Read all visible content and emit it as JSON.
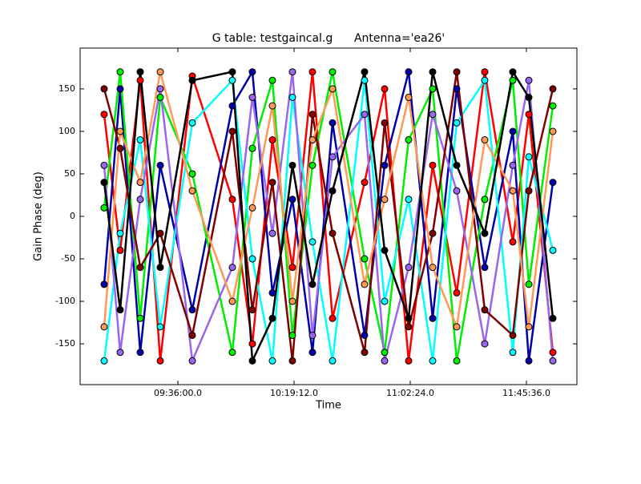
{
  "chart_data": {
    "type": "line",
    "title": "G table: testgaincal.g      Antenna='ea26'",
    "x_label": "Time",
    "y_label": "Gain Phase (deg)",
    "x": [
      32915,
      33273,
      33720,
      34167,
      34882,
      35775,
      36222,
      36669,
      37116,
      37563,
      38010,
      38725,
      39172,
      39708,
      40244,
      40781,
      41406,
      42032,
      42390,
      42926
    ],
    "xlim": [
      32379,
      43462
    ],
    "xticks": [
      {
        "value": 34560,
        "label": "09:36:00.0"
      },
      {
        "value": 37152,
        "label": "10:19:12.0"
      },
      {
        "value": 39744,
        "label": "11:02:24.0"
      },
      {
        "value": 42336,
        "label": "11:45:36.0"
      }
    ],
    "ylim": [
      -198,
      198
    ],
    "yticks": [
      -150,
      -100,
      -50,
      0,
      50,
      100,
      150
    ],
    "series": [
      {
        "color": "#ff0000",
        "values": [
          120,
          -40,
          160,
          -170,
          165,
          20,
          -150,
          90,
          -60,
          170,
          -120,
          40,
          150,
          -170,
          60,
          -90,
          170,
          -30,
          120,
          -160
        ]
      },
      {
        "color": "#0000aa",
        "values": [
          -80,
          150,
          -160,
          60,
          -110,
          130,
          170,
          -90,
          20,
          -160,
          110,
          -140,
          60,
          170,
          -120,
          150,
          -60,
          100,
          -170,
          40
        ]
      },
      {
        "color": "#00ee00",
        "values": [
          10,
          170,
          -120,
          140,
          50,
          -160,
          80,
          160,
          -140,
          60,
          170,
          -50,
          -160,
          90,
          150,
          -170,
          20,
          160,
          -80,
          130
        ]
      },
      {
        "color": "#00ffff",
        "values": [
          -170,
          -20,
          90,
          -130,
          110,
          160,
          -50,
          -170,
          140,
          -30,
          -170,
          160,
          -100,
          20,
          -170,
          110,
          160,
          -160,
          70,
          -40
        ]
      },
      {
        "color": "#9966ee",
        "values": [
          60,
          -160,
          20,
          150,
          -170,
          -60,
          140,
          -20,
          170,
          -140,
          70,
          120,
          -170,
          -60,
          120,
          30,
          -150,
          60,
          160,
          -170
        ]
      },
      {
        "color": "#800000",
        "values": [
          150,
          80,
          -60,
          -20,
          -140,
          100,
          -110,
          40,
          -170,
          120,
          -20,
          -160,
          110,
          -130,
          -20,
          170,
          -110,
          -140,
          30,
          150
        ]
      },
      {
        "color": "#ff9955",
        "values": [
          -130,
          100,
          40,
          170,
          30,
          -100,
          10,
          130,
          -100,
          90,
          150,
          -80,
          20,
          140,
          -60,
          -130,
          90,
          30,
          -130,
          100
        ]
      },
      {
        "color": "#000000",
        "values": [
          40,
          -110,
          170,
          -60,
          160,
          170,
          -170,
          -120,
          60,
          -80,
          30,
          170,
          -40,
          -120,
          170,
          60,
          -20,
          170,
          140,
          -120
        ]
      }
    ]
  }
}
